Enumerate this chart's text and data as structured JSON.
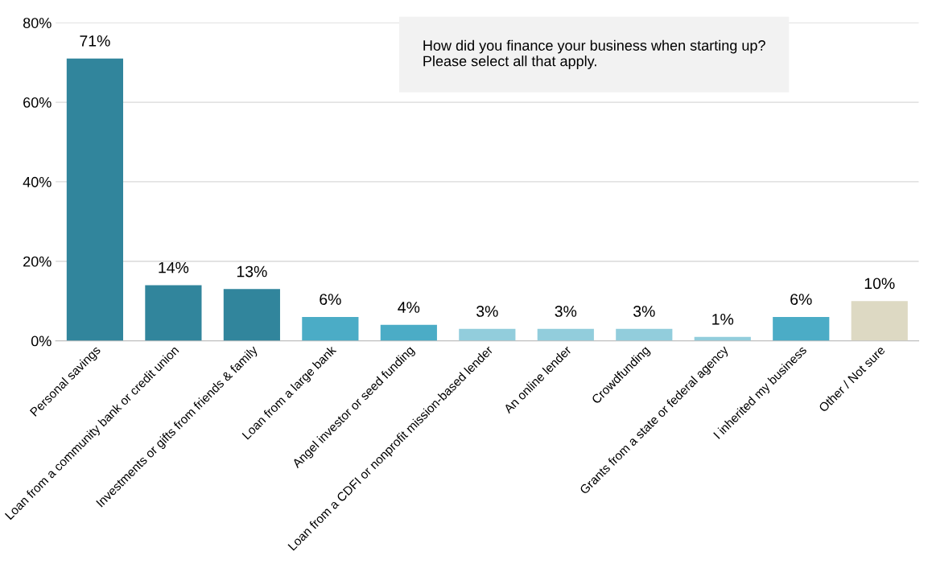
{
  "chart_data": {
    "type": "bar",
    "categories": [
      "Personal savings",
      "Loan from a community bank or credit union",
      "Investments or gifts from friends & family",
      "Loan from a large bank",
      "Angel investor or seed funding",
      "Loan from a CDFI or nonprofit mission-based lender",
      "An online lender",
      "Crowdfunding",
      "Grants from a state or federal agency",
      "I inherited my business",
      "Other / Not sure"
    ],
    "values": [
      71,
      14,
      13,
      6,
      4,
      3,
      3,
      3,
      1,
      6,
      10
    ],
    "value_labels": [
      "71%",
      "14%",
      "13%",
      "6%",
      "4%",
      "3%",
      "3%",
      "3%",
      "1%",
      "6%",
      "10%"
    ],
    "colors": [
      "#31859c",
      "#31859c",
      "#31859c",
      "#4bacc6",
      "#4bacc6",
      "#92cddc",
      "#92cddc",
      "#92cddc",
      "#92cddc",
      "#4bacc6",
      "#ddd9c3"
    ],
    "ylim": [
      0,
      80
    ],
    "yticks": [
      {
        "value": 0,
        "label": "0%"
      },
      {
        "value": 20,
        "label": "20%"
      },
      {
        "value": 40,
        "label": "40%"
      },
      {
        "value": 60,
        "label": "60%"
      },
      {
        "value": 80,
        "label": "80%"
      }
    ],
    "grid": "y",
    "annotations": [
      "How did you finance your business when starting up?\nPlease select all that apply."
    ]
  }
}
